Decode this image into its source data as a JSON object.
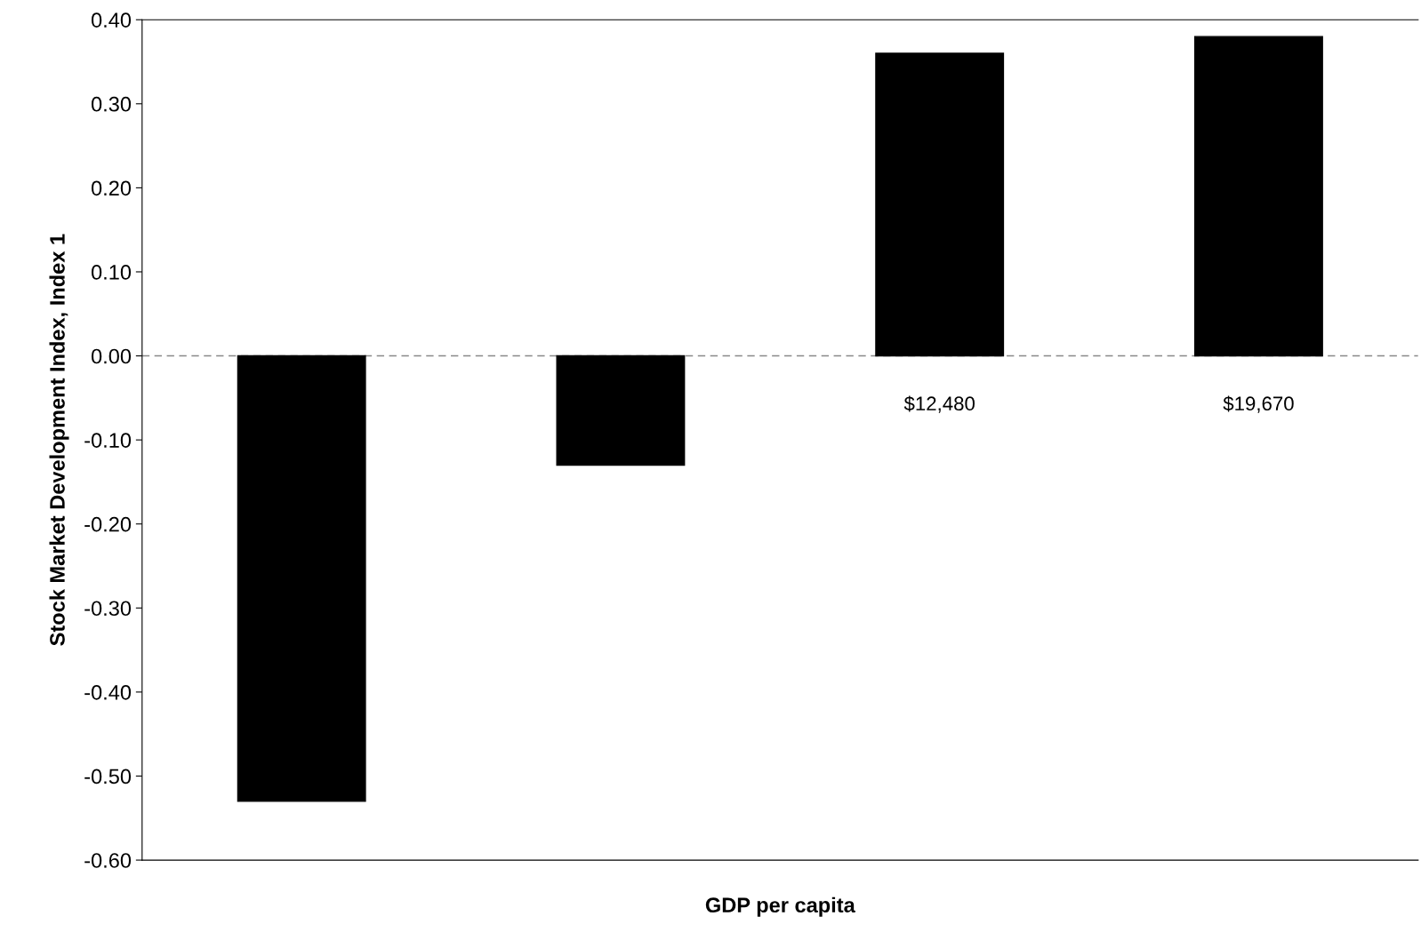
{
  "chart_data": {
    "type": "bar",
    "xlabel": "GDP per capita",
    "ylabel": "Stock Market Development Index, Index 1",
    "categories": [
      null,
      null,
      "$12,480",
      "$19,670"
    ],
    "series": [
      {
        "color": "#000000",
        "values": [
          -0.53,
          -0.13,
          0.36,
          0.38
        ]
      }
    ],
    "ylim": [
      -0.6,
      0.4
    ],
    "yticks": [
      {
        "value": -0.6,
        "label": "-0.60"
      },
      {
        "value": -0.5,
        "label": "-0.50"
      },
      {
        "value": -0.4,
        "label": "-0.40"
      },
      {
        "value": -0.3,
        "label": "-0.30"
      },
      {
        "value": -0.2,
        "label": "-0.20"
      },
      {
        "value": -0.1,
        "label": "-0.10"
      },
      {
        "value": 0,
        "label": "0.00"
      },
      {
        "value": 0.1,
        "label": "0.10"
      },
      {
        "value": 0.2,
        "label": "0.20"
      },
      {
        "value": 0.3,
        "label": "0.30"
      },
      {
        "value": 0.4,
        "label": "0.40"
      }
    ],
    "ref_lines": [
      {
        "axis": "y",
        "value": 0,
        "color": "#888888",
        "line_style": "dashed"
      }
    ],
    "grid": false
  }
}
